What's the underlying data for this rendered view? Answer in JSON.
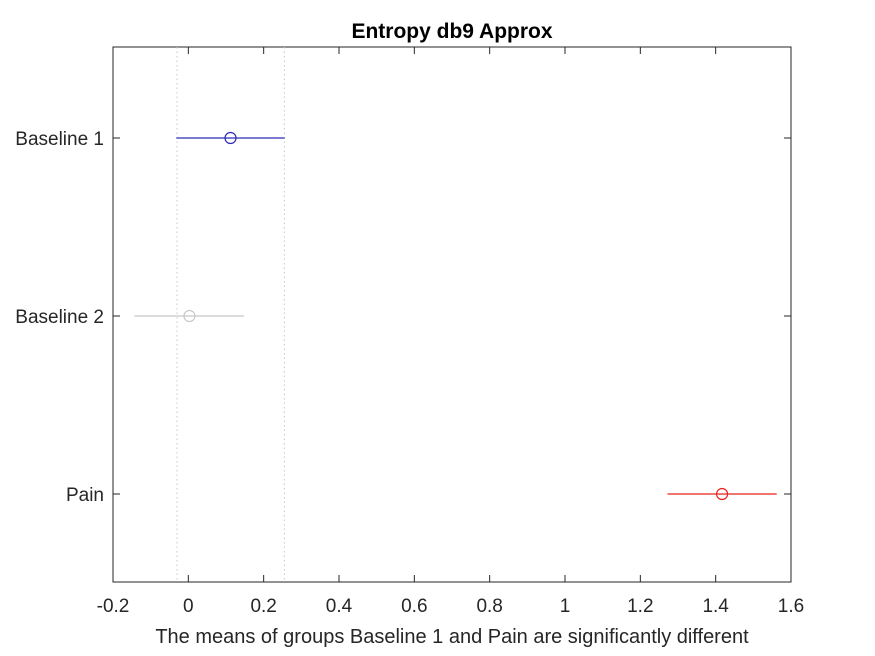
{
  "chart_data": {
    "type": "scatter",
    "title": "Entropy db9 Approx",
    "xlabel": "The means of groups Baseline 1 and Pain are significantly different",
    "ylabel": "",
    "xlim": [
      -0.2,
      1.6
    ],
    "x_ticks": [
      "-0.2",
      "0",
      "0.2",
      "0.4",
      "0.6",
      "0.8",
      "1",
      "1.2",
      "1.4",
      "1.6"
    ],
    "x_tick_values": [
      -0.2,
      0,
      0.2,
      0.4,
      0.6,
      0.8,
      1.0,
      1.2,
      1.4,
      1.6
    ],
    "grid": false,
    "reference_lines": [
      -0.03,
      0.255
    ],
    "groups": [
      {
        "label": "Baseline 1",
        "mean": 0.112,
        "lower": -0.032,
        "upper": 0.256,
        "color": "#2c2cb8"
      },
      {
        "label": "Baseline 2",
        "mean": 0.003,
        "lower": -0.143,
        "upper": 0.148,
        "color": "#c8c8c8"
      },
      {
        "label": "Pain",
        "mean": 1.417,
        "lower": 1.272,
        "upper": 1.562,
        "color": "#e8221b"
      }
    ]
  }
}
